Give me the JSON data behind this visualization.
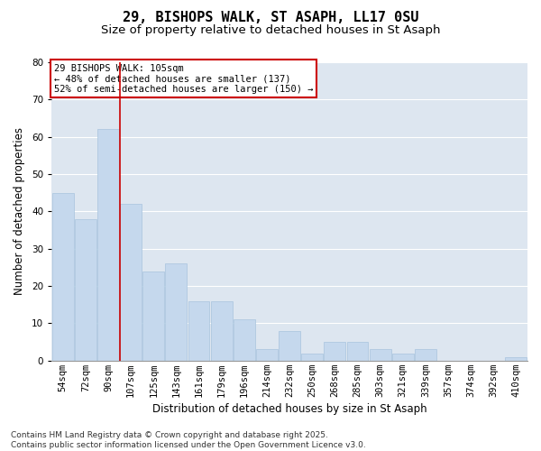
{
  "title1": "29, BISHOPS WALK, ST ASAPH, LL17 0SU",
  "title2": "Size of property relative to detached houses in St Asaph",
  "xlabel": "Distribution of detached houses by size in St Asaph",
  "ylabel": "Number of detached properties",
  "categories": [
    "54sqm",
    "72sqm",
    "90sqm",
    "107sqm",
    "125sqm",
    "143sqm",
    "161sqm",
    "179sqm",
    "196sqm",
    "214sqm",
    "232sqm",
    "250sqm",
    "268sqm",
    "285sqm",
    "303sqm",
    "321sqm",
    "339sqm",
    "357sqm",
    "374sqm",
    "392sqm",
    "410sqm"
  ],
  "values": [
    45,
    38,
    62,
    42,
    24,
    26,
    16,
    16,
    11,
    3,
    8,
    2,
    5,
    5,
    3,
    2,
    3,
    0,
    0,
    0,
    1
  ],
  "bar_color": "#c5d8ed",
  "bar_edge_color": "#a8c4de",
  "vline_color": "#cc0000",
  "vline_index": 2.5,
  "annotation_text": "29 BISHOPS WALK: 105sqm\n← 48% of detached houses are smaller (137)\n52% of semi-detached houses are larger (150) →",
  "annotation_box_edge_color": "#cc0000",
  "annotation_box_face_color": "#ffffff",
  "ylim": [
    0,
    80
  ],
  "yticks": [
    0,
    10,
    20,
    30,
    40,
    50,
    60,
    70,
    80
  ],
  "background_color": "#dde6f0",
  "grid_color": "#ffffff",
  "figure_bg": "#ffffff",
  "footer": "Contains HM Land Registry data © Crown copyright and database right 2025.\nContains public sector information licensed under the Open Government Licence v3.0.",
  "title_fontsize": 11,
  "subtitle_fontsize": 9.5,
  "axis_label_fontsize": 8.5,
  "tick_fontsize": 7.5,
  "annotation_fontsize": 7.5,
  "footer_fontsize": 6.5
}
